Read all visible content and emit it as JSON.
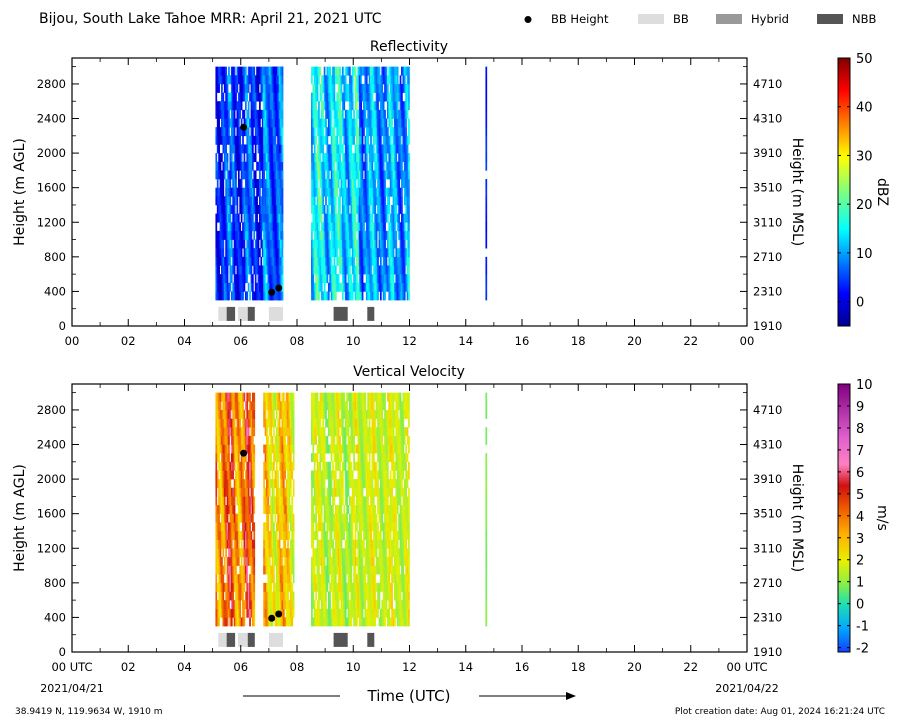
{
  "header": {
    "title": "Bijou, South Lake Tahoe MRR:  April 21, 2021 UTC",
    "legend": [
      {
        "label": "BB Height",
        "marker": "dot",
        "color": "#000000"
      },
      {
        "label": "BB",
        "marker": "box",
        "color": "#dddddd"
      },
      {
        "label": "Hybrid",
        "marker": "box",
        "color": "#999999"
      },
      {
        "label": "NBB",
        "marker": "box",
        "color": "#555555"
      }
    ]
  },
  "footer": {
    "location": "38.9419 N, 119.9634 W, 1910 m",
    "creation": "Plot creation date: Aug 01, 2024 16:21:24 UTC",
    "xlabel": "Time (UTC)",
    "start_date": "2021/04/21",
    "end_date": "2021/04/22"
  },
  "chart_data": [
    {
      "type": "heatmap",
      "title": "Reflectivity",
      "ylabel": "Height (m AGL)",
      "ylabel_right": "Height (m MSL)",
      "xlim": [
        0,
        24
      ],
      "ylim": [
        0,
        3100
      ],
      "x_ticks": [
        "00",
        "02",
        "04",
        "06",
        "08",
        "10",
        "12",
        "14",
        "16",
        "18",
        "20",
        "22",
        "00"
      ],
      "y_ticks": [
        "0",
        "400",
        "800",
        "1200",
        "1600",
        "2000",
        "2400",
        "2800"
      ],
      "y_ticks_right": [
        "1910",
        "2310",
        "2710",
        "3110",
        "3510",
        "3910",
        "4310",
        "4710"
      ],
      "colorbar": {
        "label": "dBZ",
        "min": -5,
        "max": 50,
        "ticks": [
          "0",
          "10",
          "20",
          "30",
          "40",
          "50"
        ],
        "colormap": "jet"
      },
      "precip_segments": [
        {
          "start": 5.1,
          "end": 7.5,
          "value_range": [
            -3,
            12
          ]
        },
        {
          "start": 6.8,
          "end": 7.5,
          "value_range": [
            0,
            14
          ]
        },
        {
          "start": 8.5,
          "end": 10.3,
          "value_range": [
            5,
            22
          ]
        },
        {
          "start": 10.2,
          "end": 12.0,
          "value_range": [
            2,
            17
          ]
        },
        {
          "start": 14.7,
          "end": 14.75,
          "value_range": [
            0,
            5
          ]
        }
      ],
      "bb_height_points": [
        {
          "time": 6.1,
          "height": 2300
        },
        {
          "time": 7.1,
          "height": 390
        },
        {
          "time": 7.35,
          "height": 440
        }
      ],
      "bb_type_bars": [
        {
          "start": 5.2,
          "end": 5.7,
          "type": "BB"
        },
        {
          "start": 5.5,
          "end": 5.8,
          "type": "NBB"
        },
        {
          "start": 5.9,
          "end": 6.3,
          "type": "BB"
        },
        {
          "start": 6.25,
          "end": 6.5,
          "type": "NBB"
        },
        {
          "start": 7.0,
          "end": 7.5,
          "type": "BB"
        },
        {
          "start": 9.3,
          "end": 9.8,
          "type": "NBB"
        },
        {
          "start": 10.5,
          "end": 10.75,
          "type": "NBB"
        }
      ]
    },
    {
      "type": "heatmap",
      "title": "Vertical Velocity",
      "ylabel": "Height (m AGL)",
      "ylabel_right": "Height (m MSL)",
      "xlim": [
        0,
        24
      ],
      "ylim": [
        0,
        3100
      ],
      "x_ticks": [
        "00 UTC",
        "02",
        "04",
        "06",
        "08",
        "10",
        "12",
        "14",
        "16",
        "18",
        "20",
        "22",
        "00 UTC"
      ],
      "y_ticks": [
        "0",
        "400",
        "800",
        "1200",
        "1600",
        "2000",
        "2400",
        "2800"
      ],
      "y_ticks_right": [
        "1910",
        "2310",
        "2710",
        "3110",
        "3510",
        "3910",
        "4310",
        "4710"
      ],
      "colorbar": {
        "label": "m/s",
        "min": -2.2,
        "max": 10,
        "ticks": [
          "-2",
          "-1",
          "0",
          "1",
          "2",
          "3",
          "4",
          "5",
          "6",
          "7",
          "8",
          "9",
          "10"
        ],
        "colormap": "velocity"
      },
      "precip_segments": [
        {
          "start": 5.1,
          "end": 6.5,
          "value_range": [
            2,
            6
          ]
        },
        {
          "start": 6.8,
          "end": 7.9,
          "value_range": [
            1,
            4
          ]
        },
        {
          "start": 8.5,
          "end": 10.3,
          "value_range": [
            0.5,
            2.5
          ]
        },
        {
          "start": 10.2,
          "end": 12.0,
          "value_range": [
            0.8,
            2.5
          ]
        },
        {
          "start": 14.7,
          "end": 14.75,
          "value_range": [
            0.5,
            1
          ]
        }
      ],
      "bb_height_points": [
        {
          "time": 6.1,
          "height": 2300
        },
        {
          "time": 7.1,
          "height": 390
        },
        {
          "time": 7.35,
          "height": 440
        }
      ],
      "bb_type_bars": [
        {
          "start": 5.2,
          "end": 5.7,
          "type": "BB"
        },
        {
          "start": 5.5,
          "end": 5.8,
          "type": "NBB"
        },
        {
          "start": 5.9,
          "end": 6.3,
          "type": "BB"
        },
        {
          "start": 6.25,
          "end": 6.5,
          "type": "NBB"
        },
        {
          "start": 7.0,
          "end": 7.5,
          "type": "BB"
        },
        {
          "start": 9.3,
          "end": 9.8,
          "type": "NBB"
        },
        {
          "start": 10.5,
          "end": 10.75,
          "type": "NBB"
        }
      ]
    }
  ]
}
